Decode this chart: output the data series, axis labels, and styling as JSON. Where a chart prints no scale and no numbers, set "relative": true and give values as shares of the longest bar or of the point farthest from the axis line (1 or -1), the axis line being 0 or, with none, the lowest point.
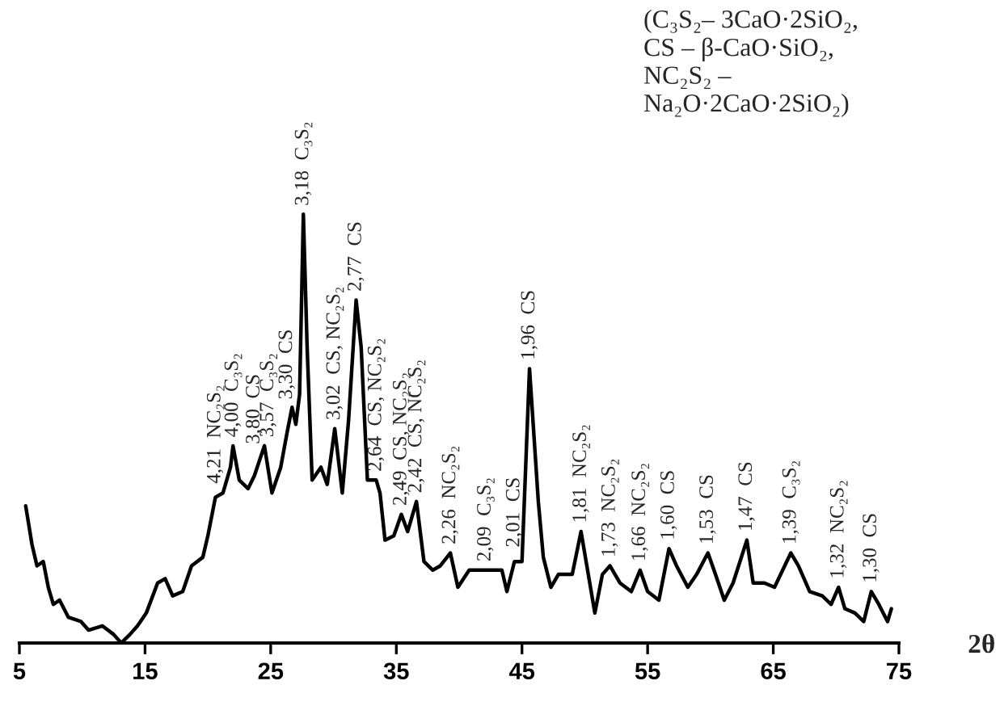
{
  "chart_data": {
    "type": "line",
    "relative": true,
    "xlabel": "2θ",
    "xlim": [
      5,
      75
    ],
    "xticks": [
      5,
      15,
      25,
      35,
      45,
      55,
      65,
      75
    ],
    "series": [
      {
        "color": "#000000",
        "x": [
          5.5,
          6.0,
          6.4,
          6.9,
          7.3,
          7.7,
          8.2,
          8.9,
          9.9,
          10.5,
          11.6,
          12.5,
          13.1,
          13.8,
          14.4,
          15.1,
          16.0,
          16.6,
          17.2,
          18.0,
          18.7,
          19.6,
          20.0,
          20.6,
          21.2,
          21.8,
          22.0,
          22.5,
          23.2,
          23.7,
          24.5,
          25.1,
          25.8,
          26.3,
          26.7,
          27.0,
          27.3,
          27.6,
          27.9,
          28.3,
          29.0,
          29.5,
          30.1,
          30.7,
          31.2,
          31.8,
          32.2,
          32.7,
          33.4,
          33.7,
          34.1,
          34.8,
          35.4,
          35.9,
          36.6,
          37.2,
          37.9,
          38.5,
          39.3,
          39.9,
          40.8,
          42.1,
          43.4,
          43.8,
          44.4,
          45.0,
          45.6,
          46.3,
          46.7,
          47.3,
          47.9,
          49.0,
          49.7,
          50.8,
          51.4,
          52.0,
          52.8,
          53.7,
          54.4,
          55.0,
          55.9,
          56.7,
          57.3,
          58.2,
          58.9,
          59.8,
          60.4,
          61.1,
          61.8,
          62.9,
          63.4,
          64.3,
          65.1,
          66.4,
          67.0,
          67.9,
          68.9,
          69.6,
          70.2,
          70.7,
          71.5,
          72.2,
          72.8,
          73.4,
          74.1,
          74.4
        ],
        "values": [
          0.32,
          0.23,
          0.18,
          0.19,
          0.13,
          0.09,
          0.1,
          0.06,
          0.05,
          0.03,
          0.04,
          0.02,
          0.0,
          0.02,
          0.04,
          0.07,
          0.14,
          0.15,
          0.11,
          0.12,
          0.18,
          0.2,
          0.25,
          0.34,
          0.35,
          0.41,
          0.46,
          0.38,
          0.36,
          0.39,
          0.46,
          0.35,
          0.41,
          0.49,
          0.55,
          0.51,
          0.58,
          1.0,
          0.69,
          0.38,
          0.41,
          0.37,
          0.5,
          0.35,
          0.52,
          0.8,
          0.69,
          0.38,
          0.38,
          0.35,
          0.24,
          0.25,
          0.3,
          0.26,
          0.33,
          0.19,
          0.17,
          0.18,
          0.21,
          0.13,
          0.17,
          0.17,
          0.17,
          0.12,
          0.19,
          0.19,
          0.64,
          0.33,
          0.2,
          0.13,
          0.16,
          0.16,
          0.26,
          0.07,
          0.16,
          0.18,
          0.14,
          0.12,
          0.17,
          0.12,
          0.1,
          0.22,
          0.18,
          0.13,
          0.16,
          0.21,
          0.16,
          0.1,
          0.14,
          0.24,
          0.14,
          0.14,
          0.13,
          0.21,
          0.18,
          0.12,
          0.11,
          0.09,
          0.13,
          0.08,
          0.07,
          0.05,
          0.12,
          0.09,
          0.05,
          0.08
        ]
      }
    ],
    "annotations": [
      "(C₃S₂– 3CaO·2SiO₂,\nCS – β-CaO·SiO₂,\nNC₂S₂ –\nNa₂O·2CaO·2SiO₂)",
      {
        "text": "4,21  NC₂S₂",
        "x": 20.6,
        "y": 0.34
      },
      {
        "text": "4,00  C₃S₂",
        "x": 22.0,
        "y": 0.46
      },
      {
        "text": "3,80  CS",
        "x": 23.7,
        "y": 0.39
      },
      {
        "text": "3,57  C₃S₂",
        "x": 24.5,
        "y": 0.46
      },
      {
        "text": "3,30  CS",
        "x": 26.3,
        "y": 0.49
      },
      {
        "text": "3,18  C₃S₂",
        "x": 27.6,
        "y": 1.0
      },
      {
        "text": "3,02  CS, NC₂S₂",
        "x": 30.1,
        "y": 0.5
      },
      {
        "text": "2,77  CS",
        "x": 31.8,
        "y": 0.8
      },
      {
        "text": "2,64  CS, NC₂S₂",
        "x": 33.4,
        "y": 0.38
      },
      {
        "text": "2,49  CS, NC₂S₂",
        "x": 35.4,
        "y": 0.3
      },
      {
        "text": "2,42  CS, NC₂S₂",
        "x": 36.6,
        "y": 0.33
      },
      {
        "text": "2,26  NC₂S₂",
        "x": 39.3,
        "y": 0.21
      },
      {
        "text": "2,09  C₃S₂",
        "x": 42.1,
        "y": 0.17
      },
      {
        "text": "2,01  CS",
        "x": 44.4,
        "y": 0.19
      },
      {
        "text": "1,96  CS",
        "x": 45.6,
        "y": 0.64
      },
      {
        "text": "1,81  NC₂S₂",
        "x": 49.7,
        "y": 0.26
      },
      {
        "text": "1,73  NC₂S₂",
        "x": 52.0,
        "y": 0.18
      },
      {
        "text": "1,66  NC₂S₂",
        "x": 54.4,
        "y": 0.17
      },
      {
        "text": "1,60  CS",
        "x": 56.7,
        "y": 0.22
      },
      {
        "text": "1,53  CS",
        "x": 59.8,
        "y": 0.21
      },
      {
        "text": "1,47  CS",
        "x": 62.9,
        "y": 0.24
      },
      {
        "text": "1,39  C₃S₂",
        "x": 66.4,
        "y": 0.21
      },
      {
        "text": "1,32  NC₂S₂",
        "x": 70.2,
        "y": 0.13
      },
      {
        "text": "1,30  CS",
        "x": 72.8,
        "y": 0.12
      }
    ]
  }
}
